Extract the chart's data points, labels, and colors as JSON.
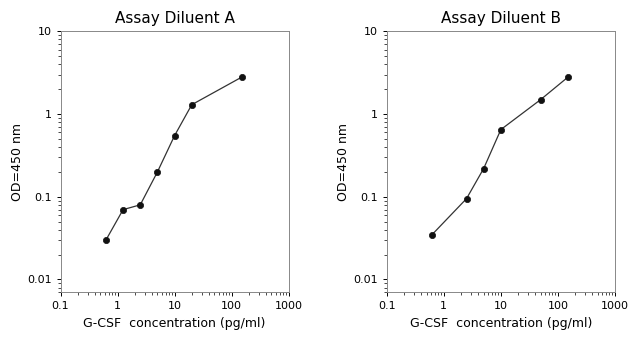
{
  "panel_A": {
    "title": "Assay Diluent A",
    "x": [
      0.625,
      1.25,
      2.5,
      5,
      10,
      20,
      150
    ],
    "y": [
      0.03,
      0.07,
      0.08,
      0.2,
      0.55,
      1.3,
      2.8
    ],
    "xlabel": "G-CSF  concentration (pg/ml)",
    "ylabel": "OD=450 nm"
  },
  "panel_B": {
    "title": "Assay Diluent B",
    "x": [
      0.625,
      2.5,
      5,
      10,
      50,
      150
    ],
    "y": [
      0.035,
      0.095,
      0.22,
      0.65,
      1.5,
      2.8
    ],
    "xlabel": "G-CSF  concentration (pg/ml)",
    "ylabel": "OD=450 nm"
  },
  "xlim": [
    0.1,
    1000
  ],
  "ylim": [
    0.007,
    10
  ],
  "xticks": [
    0.1,
    1,
    10,
    100,
    1000
  ],
  "yticks": [
    0.01,
    0.1,
    1,
    10
  ],
  "xtick_labels": [
    "0.1",
    "1",
    "10",
    "100",
    "1000"
  ],
  "ytick_labels": [
    "0.01",
    "0.1",
    "1",
    "10"
  ],
  "line_color": "#333333",
  "marker_color": "#111111",
  "bg_color": "#ffffff",
  "title_fontsize": 11,
  "label_fontsize": 9,
  "tick_fontsize": 8
}
